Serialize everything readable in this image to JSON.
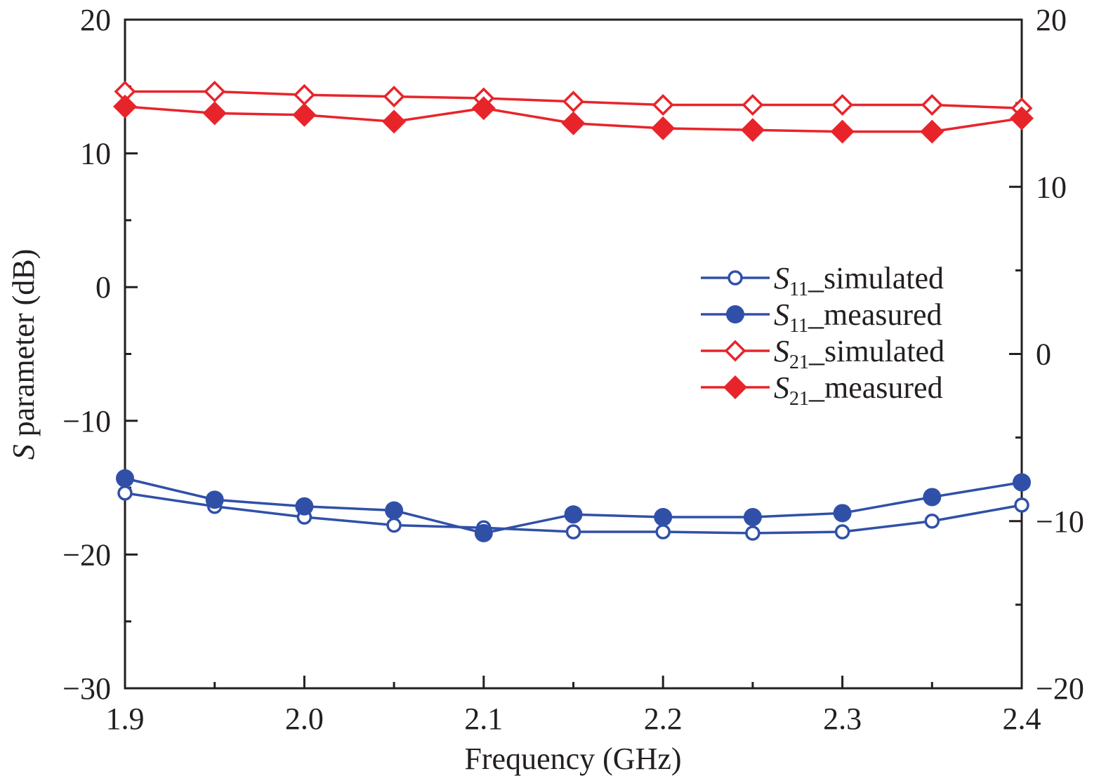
{
  "chart_data": {
    "type": "line",
    "title": "",
    "xlabel": "Frequency (GHz)",
    "ylabel_italic": "S",
    "ylabel_rest": " parameter (dB)",
    "xlim": [
      1.9,
      2.4
    ],
    "ylim_left": [
      -30,
      20
    ],
    "ylim_right": [
      -20,
      20
    ],
    "grid": false,
    "legend_position": "center-right",
    "x_ticks": [
      1.9,
      2.0,
      2.1,
      2.2,
      2.3,
      2.4
    ],
    "x_tick_labels": [
      "1.9",
      "2.0",
      "2.1",
      "2.2",
      "2.3",
      "2.4"
    ],
    "x_minor_ticks": [
      1.95,
      2.05,
      2.15,
      2.25,
      2.35
    ],
    "y_left_ticks": [
      20,
      10,
      0,
      -10,
      -20,
      -30
    ],
    "y_left_tick_labels": [
      "20",
      "10",
      "0",
      "−10",
      "−20",
      "−30"
    ],
    "y_left_minor_ticks": [
      15,
      5,
      -5,
      -15,
      -25
    ],
    "y_right_ticks": [
      20,
      10,
      0,
      -10,
      -20
    ],
    "y_right_tick_labels": [
      "20",
      "10",
      "0",
      "−10",
      "−20"
    ],
    "y_right_minor_ticks": [
      15,
      5,
      -5,
      -15
    ],
    "x": [
      1.9,
      1.95,
      2.0,
      2.05,
      2.1,
      2.15,
      2.2,
      2.25,
      2.3,
      2.35,
      2.4
    ],
    "series": [
      {
        "name": "S11_simulated",
        "label_main": "S",
        "label_sub": "11",
        "label_suffix": "_simulated",
        "axis": "left",
        "color": "#3050a8",
        "marker": "circle-open",
        "values": [
          -15.4,
          -16.4,
          -17.2,
          -17.8,
          -18.0,
          -18.3,
          -18.3,
          -18.4,
          -18.3,
          -17.5,
          -16.3
        ]
      },
      {
        "name": "S11_measured",
        "label_main": "S",
        "label_sub": "11",
        "label_suffix": "_measured",
        "axis": "left",
        "color": "#3050a8",
        "marker": "circle-filled",
        "values": [
          -14.3,
          -15.9,
          -16.4,
          -16.7,
          -18.4,
          -17.0,
          -17.2,
          -17.2,
          -16.9,
          -15.7,
          -14.6
        ]
      },
      {
        "name": "S21_simulated",
        "label_main": "S",
        "label_sub": "21",
        "label_suffix": "_simulated",
        "axis": "right",
        "color": "#e8242b",
        "marker": "diamond-open",
        "values": [
          15.7,
          15.7,
          15.5,
          15.4,
          15.3,
          15.1,
          14.9,
          14.9,
          14.9,
          14.9,
          14.7
        ]
      },
      {
        "name": "S21_measured",
        "label_main": "S",
        "label_sub": "21",
        "label_suffix": "_measured",
        "axis": "right",
        "color": "#e8242b",
        "marker": "diamond-filled",
        "values": [
          14.8,
          14.4,
          14.3,
          13.9,
          14.7,
          13.8,
          13.5,
          13.4,
          13.3,
          13.3,
          14.1
        ]
      }
    ]
  }
}
